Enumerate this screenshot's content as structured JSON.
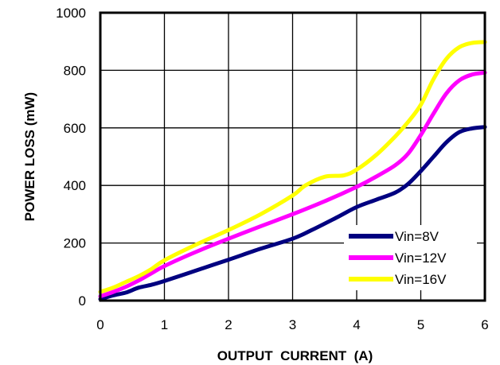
{
  "chart_data": {
    "type": "line",
    "title": "",
    "xlabel": "OUTPUT  CURRENT  (A)",
    "ylabel": "POWER LOSS (mW)",
    "xlim": [
      0,
      6
    ],
    "ylim": [
      0,
      1000
    ],
    "xticks": [
      "0",
      "1",
      "2",
      "3",
      "4",
      "5",
      "6"
    ],
    "yticks": [
      "0",
      "200",
      "400",
      "600",
      "800",
      "1000"
    ],
    "grid": true,
    "legend_position": "bottom-right",
    "series": [
      {
        "name": "Vin=8V",
        "color": "#000080",
        "points": [
          [
            0,
            5
          ],
          [
            0.2,
            18
          ],
          [
            0.4,
            28
          ],
          [
            0.6,
            45
          ],
          [
            0.8,
            55
          ],
          [
            1.0,
            68
          ],
          [
            1.5,
            105
          ],
          [
            2.0,
            142
          ],
          [
            2.5,
            180
          ],
          [
            3.0,
            215
          ],
          [
            3.3,
            245
          ],
          [
            3.7,
            290
          ],
          [
            4.0,
            325
          ],
          [
            4.3,
            350
          ],
          [
            4.6,
            375
          ],
          [
            4.8,
            405
          ],
          [
            5.0,
            450
          ],
          [
            5.2,
            500
          ],
          [
            5.4,
            550
          ],
          [
            5.6,
            585
          ],
          [
            5.8,
            598
          ],
          [
            6.0,
            603
          ]
        ]
      },
      {
        "name": "Vin=12V",
        "color": "#FF00FF",
        "points": [
          [
            0,
            15
          ],
          [
            0.2,
            30
          ],
          [
            0.4,
            48
          ],
          [
            0.6,
            70
          ],
          [
            0.8,
            95
          ],
          [
            1.0,
            120
          ],
          [
            1.5,
            170
          ],
          [
            2.0,
            215
          ],
          [
            2.5,
            258
          ],
          [
            3.0,
            300
          ],
          [
            3.5,
            345
          ],
          [
            4.0,
            395
          ],
          [
            4.3,
            430
          ],
          [
            4.6,
            470
          ],
          [
            4.8,
            510
          ],
          [
            5.0,
            575
          ],
          [
            5.2,
            650
          ],
          [
            5.4,
            720
          ],
          [
            5.6,
            765
          ],
          [
            5.8,
            785
          ],
          [
            6.0,
            792
          ]
        ]
      },
      {
        "name": "Vin=16V",
        "color": "#FFFF00",
        "points": [
          [
            0,
            30
          ],
          [
            0.2,
            45
          ],
          [
            0.4,
            65
          ],
          [
            0.6,
            85
          ],
          [
            0.8,
            110
          ],
          [
            1.0,
            140
          ],
          [
            1.5,
            195
          ],
          [
            2.0,
            245
          ],
          [
            2.5,
            300
          ],
          [
            3.0,
            365
          ],
          [
            3.2,
            400
          ],
          [
            3.5,
            430
          ],
          [
            3.8,
            435
          ],
          [
            4.0,
            455
          ],
          [
            4.3,
            505
          ],
          [
            4.6,
            570
          ],
          [
            4.8,
            620
          ],
          [
            5.0,
            680
          ],
          [
            5.2,
            770
          ],
          [
            5.4,
            840
          ],
          [
            5.6,
            880
          ],
          [
            5.8,
            895
          ],
          [
            6.0,
            898
          ]
        ]
      }
    ]
  }
}
